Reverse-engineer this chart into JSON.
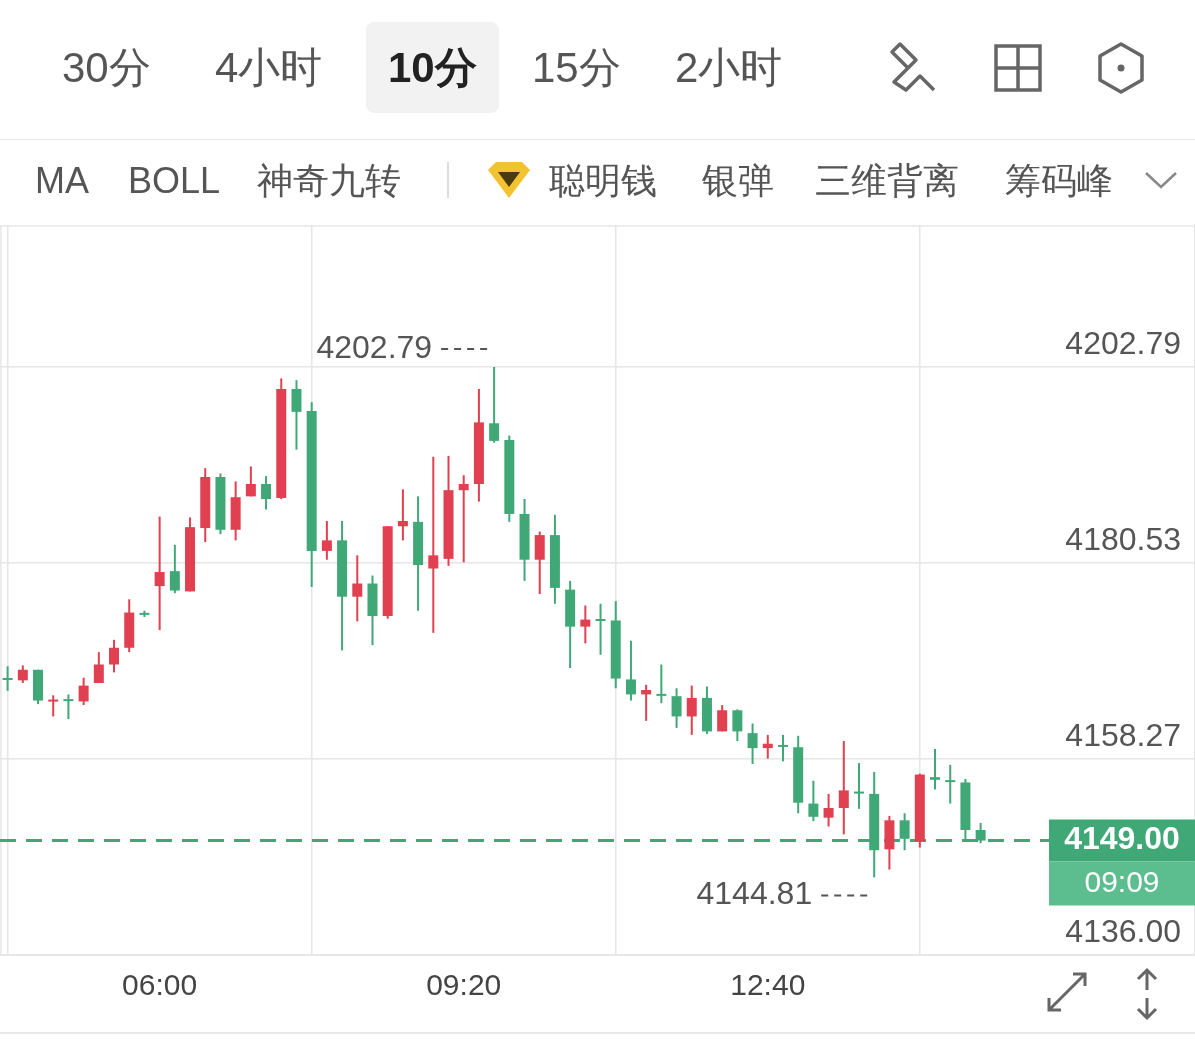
{
  "chart_data": {
    "type": "candlestick",
    "x": [
      4.3333,
      4.5,
      4.6667,
      4.8333,
      5,
      5.1667,
      5.3333,
      5.5,
      5.6667,
      5.8333,
      6,
      6.1667,
      6.3333,
      6.5,
      6.6667,
      6.8333,
      7,
      7.1667,
      7.3333,
      7.5,
      7.6667,
      7.8333,
      8,
      8.1667,
      8.3333,
      8.5,
      8.6667,
      8.8333,
      9,
      9.1667,
      9.3333,
      9.5,
      9.6667,
      9.8333,
      10,
      10.1667,
      10.3333,
      10.5,
      10.6667,
      10.8333,
      11,
      11.1667,
      11.3333,
      11.5,
      11.6667,
      11.8333,
      12,
      12.1667,
      12.3333,
      12.5,
      12.6667,
      12.8333,
      13,
      13.1667,
      13.3333,
      13.5,
      13.6667,
      13.8333,
      14,
      14.1667,
      14.3333,
      14.5,
      14.6667,
      14.8333,
      15
    ],
    "ohlc": [
      [
        4167.4,
        4168.8,
        4166.0,
        4167.3
      ],
      [
        4167.2,
        4168.9,
        4166.9,
        4168.4
      ],
      [
        4168.4,
        4168.4,
        4164.5,
        4164.9
      ],
      [
        4164.8,
        4165.5,
        4163.1,
        4165.0
      ],
      [
        4165.0,
        4165.6,
        4162.8,
        4164.9
      ],
      [
        4164.8,
        4167.5,
        4164.4,
        4166.6
      ],
      [
        4166.9,
        4170.4,
        4166.9,
        4169.0
      ],
      [
        4169.0,
        4171.8,
        4168.1,
        4170.9
      ],
      [
        4170.9,
        4176.4,
        4170.4,
        4174.9
      ],
      [
        4174.8,
        4175.1,
        4174.4,
        4174.7
      ],
      [
        4177.9,
        4185.8,
        4172.9,
        4179.5
      ],
      [
        4179.6,
        4182.6,
        4177.1,
        4177.4
      ],
      [
        4177.3,
        4185.7,
        4177.3,
        4184.6
      ],
      [
        4184.5,
        4191.3,
        4182.9,
        4190.3
      ],
      [
        4190.3,
        4190.7,
        4183.8,
        4184.3
      ],
      [
        4184.3,
        4189.8,
        4183.1,
        4188.0
      ],
      [
        4188.1,
        4191.5,
        4188.1,
        4189.5
      ],
      [
        4189.5,
        4190.4,
        4186.6,
        4187.8
      ],
      [
        4187.9,
        4201.5,
        4187.8,
        4200.3
      ],
      [
        4200.3,
        4201.3,
        4193.4,
        4197.7
      ],
      [
        4197.8,
        4198.8,
        4177.8,
        4181.9
      ],
      [
        4181.9,
        4185.3,
        4180.9,
        4183.1
      ],
      [
        4183.1,
        4185.3,
        4170.6,
        4176.7
      ],
      [
        4176.7,
        4181.4,
        4173.9,
        4178.2
      ],
      [
        4178.2,
        4179.1,
        4171.2,
        4174.5
      ],
      [
        4174.5,
        4184.7,
        4174.2,
        4184.7
      ],
      [
        4184.7,
        4188.9,
        4183.1,
        4185.3
      ],
      [
        4185.2,
        4188.1,
        4175.1,
        4180.3
      ],
      [
        4179.9,
        4192.6,
        4172.6,
        4181.4
      ],
      [
        4181.0,
        4192.7,
        4180.2,
        4188.8
      ],
      [
        4188.8,
        4190.5,
        4180.6,
        4189.5
      ],
      [
        4189.5,
        4200.3,
        4187.5,
        4196.5
      ],
      [
        4196.4,
        4202.79,
        4194.2,
        4194.4
      ],
      [
        4194.5,
        4195.0,
        4185.2,
        4186.1
      ],
      [
        4186.1,
        4187.8,
        4178.5,
        4180.9
      ],
      [
        4180.9,
        4184.1,
        4177.0,
        4183.7
      ],
      [
        4183.7,
        4186.0,
        4175.9,
        4177.7
      ],
      [
        4177.5,
        4178.5,
        4168.6,
        4173.3
      ],
      [
        4173.3,
        4175.7,
        4171.4,
        4174.1
      ],
      [
        4174.1,
        4175.9,
        4170.1,
        4174.0
      ],
      [
        4174.0,
        4176.2,
        4166.3,
        4167.4
      ],
      [
        4167.3,
        4171.7,
        4164.9,
        4165.6
      ],
      [
        4165.6,
        4166.7,
        4162.6,
        4166.1
      ],
      [
        4165.6,
        4169.0,
        4164.6,
        4165.5
      ],
      [
        4165.4,
        4166.3,
        4161.8,
        4163.1
      ],
      [
        4163.1,
        4166.6,
        4161.0,
        4165.2
      ],
      [
        4165.2,
        4166.5,
        4161.1,
        4161.4
      ],
      [
        4161.4,
        4164.4,
        4161.4,
        4163.8
      ],
      [
        4163.8,
        4163.9,
        4160.3,
        4161.4
      ],
      [
        4161.2,
        4162.3,
        4157.7,
        4159.5
      ],
      [
        4159.5,
        4161.0,
        4158.3,
        4160.0
      ],
      [
        4159.8,
        4161.0,
        4158.0,
        4159.7
      ],
      [
        4159.6,
        4160.9,
        4152.1,
        4153.3
      ],
      [
        4153.2,
        4155.8,
        4151.2,
        4151.7
      ],
      [
        4151.6,
        4154.3,
        4150.6,
        4152.7
      ],
      [
        4152.7,
        4160.3,
        4149.7,
        4154.7
      ],
      [
        4154.5,
        4157.8,
        4152.6,
        4154.4
      ],
      [
        4154.3,
        4156.8,
        4144.81,
        4147.9
      ],
      [
        4148.0,
        4151.8,
        4145.7,
        4151.3
      ],
      [
        4151.3,
        4152.1,
        4147.9,
        4149.2
      ],
      [
        4148.9,
        4156.6,
        4148.2,
        4156.5
      ],
      [
        4156.2,
        4159.4,
        4154.8,
        4155.9
      ],
      [
        4155.8,
        4157.6,
        4153.2,
        4155.7
      ],
      [
        4155.6,
        4156.0,
        4149.0,
        4150.2
      ],
      [
        4150.2,
        4151.0,
        4148.7,
        4149.0
      ]
    ],
    "colors": [
      "#3fa876",
      "#e0404f",
      "#3fa876",
      "#e0404f",
      "#3fa876",
      "#e0404f",
      "#e0404f",
      "#e0404f",
      "#e0404f",
      "#3fa876",
      "#e0404f",
      "#3fa876",
      "#e0404f",
      "#e0404f",
      "#3fa876",
      "#e0404f",
      "#e0404f",
      "#3fa876",
      "#e0404f",
      "#3fa876",
      "#3fa876",
      "#e0404f",
      "#3fa876",
      "#e0404f",
      "#3fa876",
      "#e0404f",
      "#e0404f",
      "#3fa876",
      "#e0404f",
      "#e0404f",
      "#e0404f",
      "#e0404f",
      "#3fa876",
      "#3fa876",
      "#3fa876",
      "#e0404f",
      "#3fa876",
      "#3fa876",
      "#e0404f",
      "#3fa876",
      "#3fa876",
      "#3fa876",
      "#e0404f",
      "#3fa876",
      "#3fa876",
      "#e0404f",
      "#3fa876",
      "#e0404f",
      "#3fa876",
      "#3fa876",
      "#e0404f",
      "#3fa876",
      "#3fa876",
      "#3fa876",
      "#e0404f",
      "#e0404f",
      "#3fa876",
      "#3fa876",
      "#e0404f",
      "#3fa876",
      "#e0404f",
      "#3fa876",
      "#3fa876",
      "#3fa876",
      "#3fa876"
    ],
    "xlim": [
      4.25,
      17.35
    ],
    "xticks": [
      {
        "value": 6,
        "label": "06:00"
      },
      {
        "value": 9.3333,
        "label": "09:20"
      },
      {
        "value": 12.6667,
        "label": "12:40"
      }
    ],
    "ylim": [
      4136,
      4218.9
    ],
    "yticks": [
      {
        "value": 4136,
        "label": "4136.00"
      },
      4158.27,
      4180.53,
      4202.79
    ],
    "grid": true,
    "ref_lines": [
      {
        "axis": "y",
        "value": 4149.0,
        "label": "4149.00",
        "color": "#3fa876",
        "line_style": "dashed"
      }
    ],
    "annotations": [
      "30分",
      "4小时",
      "10分",
      "15分",
      "2小时",
      "MA",
      "BOLL",
      "神奇九转",
      "聪明钱",
      "银弹",
      "三维背离",
      "筹码峰",
      "09:09",
      {
        "text": "4202.79",
        "x": 9.6667,
        "y": 4202.79
      },
      {
        "text": "4144.81",
        "x": 13.8333,
        "y": 4144.81
      }
    ]
  }
}
